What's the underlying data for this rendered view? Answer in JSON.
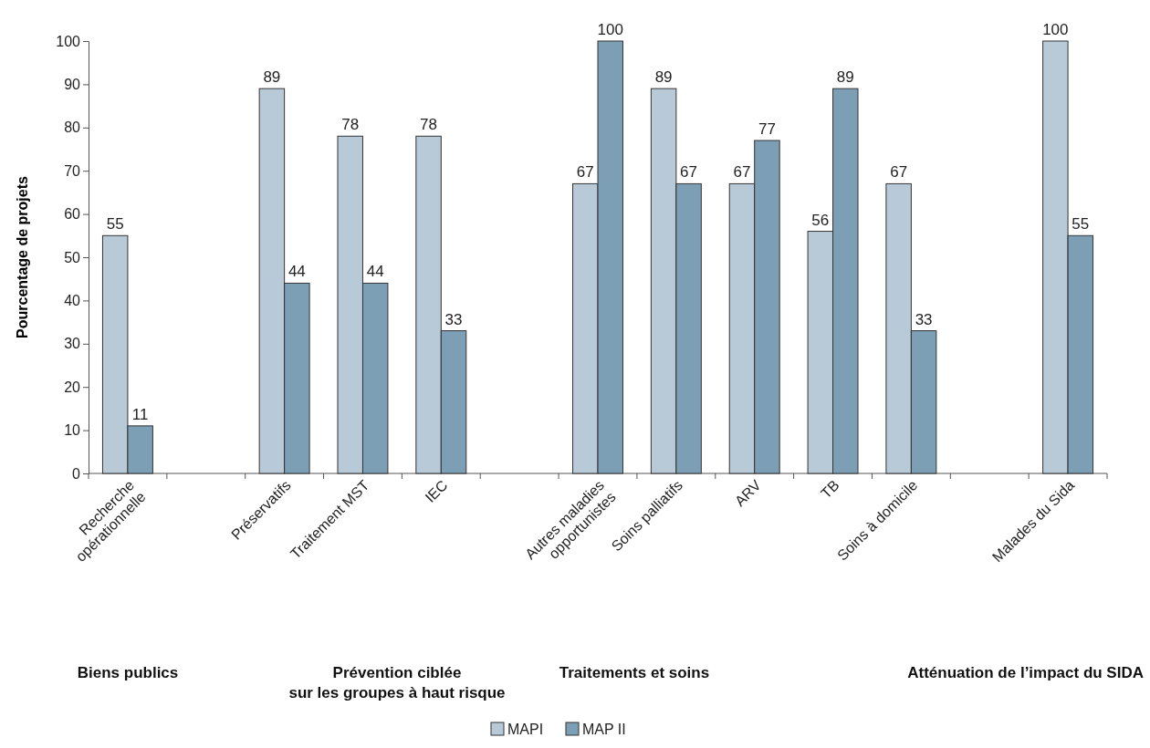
{
  "chart_data": {
    "type": "bar",
    "ylabel": "Pourcentage de projets",
    "categories": [
      "Recherche opérationnelle",
      null,
      "Préservatifs",
      "Traitement MST",
      "IEC",
      null,
      "Autres maladies opportunistes",
      "Soins palliatifs",
      "ARV",
      "TB",
      "Soins à domicile",
      null,
      "Malades du Sida"
    ],
    "series": [
      {
        "name": "MAPI",
        "color": "#b8cad8",
        "values": [
          55,
          null,
          89,
          78,
          78,
          null,
          67,
          89,
          67,
          56,
          67,
          null,
          100
        ]
      },
      {
        "name": "MAP II",
        "color": "#7d9fb5",
        "values": [
          11,
          null,
          44,
          44,
          33,
          null,
          100,
          67,
          77,
          89,
          33,
          null,
          55
        ]
      }
    ],
    "ylim": [
      0,
      100
    ],
    "yticks": [
      0,
      10,
      20,
      30,
      40,
      50,
      60,
      70,
      80,
      90,
      100
    ],
    "grid": false,
    "legend": "bottom",
    "data_labels": true,
    "annotations": [
      "Biens publics",
      "Prévention ciblée\nsur les groupes à haut risque",
      "Traitements et soins",
      "Atténuation de l’impact du SIDA"
    ]
  }
}
